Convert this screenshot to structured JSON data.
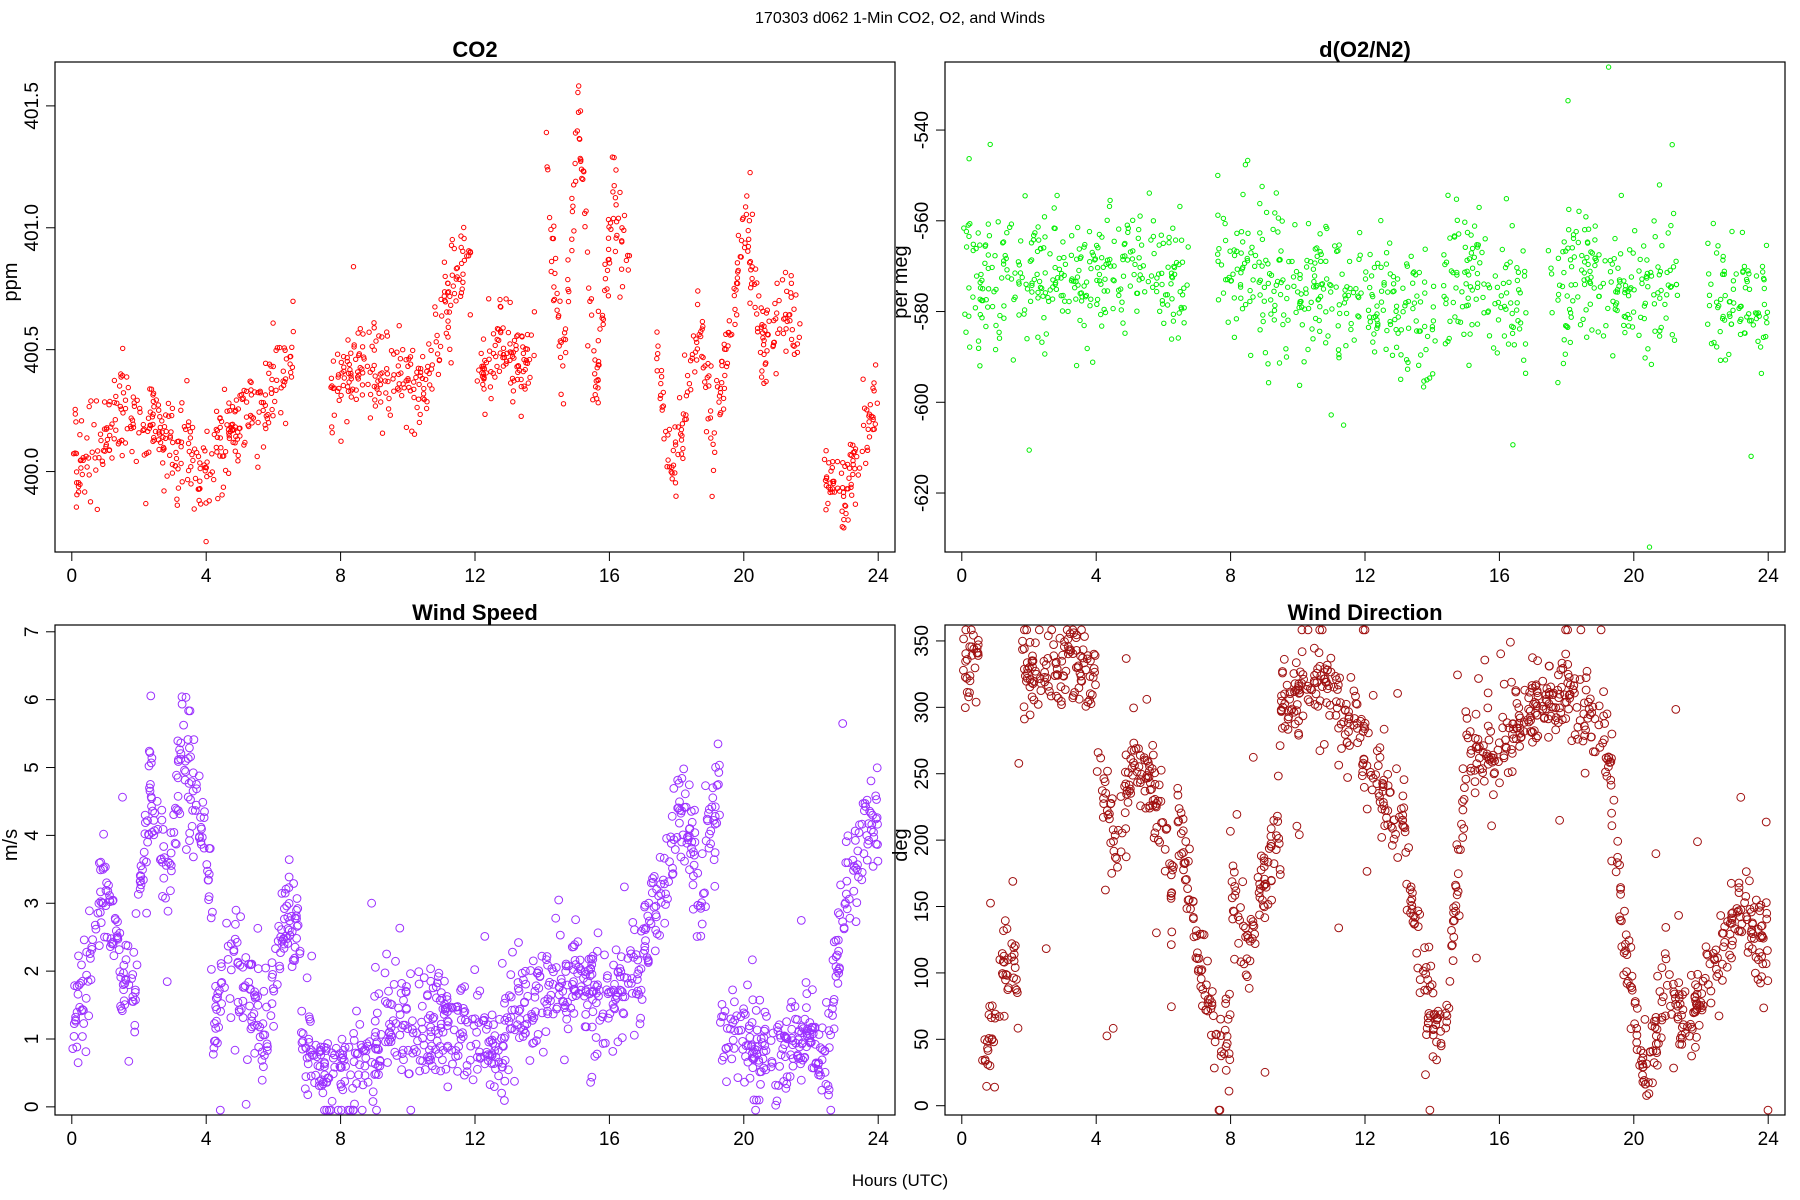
{
  "page": {
    "title": "170303   d062   1-Min CO2, O2, and Winds",
    "xlabel": "Hours (UTC)"
  },
  "chart_data": [
    {
      "id": "co2",
      "type": "scatter",
      "title": "CO2",
      "ylabel": "ppm",
      "color": "#ff0000",
      "xlim": [
        -0.5,
        24.5
      ],
      "ylim": [
        399.67,
        401.68
      ],
      "xticks": [
        0,
        4,
        8,
        12,
        16,
        20,
        24
      ],
      "yticks": [
        400.0,
        400.5,
        401.0,
        401.5
      ],
      "ytick_labels": [
        "400.0",
        "400.5",
        "401.0",
        "401.5"
      ],
      "segments": [
        {
          "x0": 0.05,
          "x1": 1.6,
          "v": [
            399.97,
            400.08,
            400.17,
            400.26
          ]
        },
        {
          "x0": 1.6,
          "x1": 3.1,
          "v": [
            400.25,
            400.16,
            400.18,
            400.14,
            400.08
          ]
        },
        {
          "x0": 3.1,
          "x1": 4.0,
          "v": [
            399.98,
            400.17,
            399.99,
            399.96
          ]
        },
        {
          "x0": 4.0,
          "x1": 6.6,
          "v": [
            400.02,
            400.12,
            400.2,
            400.27,
            400.38,
            400.5
          ]
        },
        {
          "x0": 7.7,
          "x1": 10.3,
          "v": [
            400.38,
            400.4,
            400.42,
            400.38,
            400.34
          ]
        },
        {
          "x0": 10.3,
          "x1": 11.9,
          "v": [
            400.28,
            400.48,
            400.8,
            400.92
          ]
        },
        {
          "x0": 11.9,
          "x1": 13.8,
          "v": [
            400.45,
            400.38,
            400.55,
            400.43,
            400.44
          ]
        },
        {
          "x0": 14.1,
          "x1": 16.6,
          "v": [
            401.3,
            400.4,
            401.5,
            400.3,
            401.1,
            400.85
          ]
        },
        {
          "x0": 17.4,
          "x1": 19.5,
          "v": [
            400.55,
            400.0,
            400.2,
            400.7,
            400.1,
            400.5
          ]
        },
        {
          "x0": 19.5,
          "x1": 21.7,
          "v": [
            400.5,
            401.0,
            400.5,
            400.7,
            400.5
          ]
        },
        {
          "x0": 22.4,
          "x1": 24.0,
          "v": [
            399.98,
            399.88,
            400.12,
            400.3
          ]
        }
      ],
      "noise": 0.09,
      "spikes": 0.14,
      "n": 1140,
      "point_radius": 2.2
    },
    {
      "id": "o2",
      "type": "scatter",
      "title": "d(O2/N2)",
      "ylabel": "per meg",
      "color": "#00ee00",
      "xlim": [
        -0.5,
        24.5
      ],
      "ylim": [
        -633,
        -525
      ],
      "xticks": [
        0,
        4,
        8,
        12,
        16,
        20,
        24
      ],
      "yticks": [
        -620,
        -600,
        -580,
        -560,
        -540
      ],
      "ytick_labels": [
        "-620",
        "-600",
        "-580",
        "-560",
        "-540"
      ],
      "segments": [
        {
          "x0": 0.05,
          "x1": 1.8,
          "v": [
            -574,
            -572,
            -570
          ]
        },
        {
          "x0": 1.8,
          "x1": 6.8,
          "v": [
            -571,
            -573,
            -570,
            -572
          ]
        },
        {
          "x0": 7.6,
          "x1": 12.0,
          "v": [
            -568,
            -572,
            -576,
            -575
          ]
        },
        {
          "x0": 12.0,
          "x1": 14.1,
          "v": [
            -578,
            -581,
            -583
          ]
        },
        {
          "x0": 14.3,
          "x1": 16.8,
          "v": [
            -578,
            -570,
            -575,
            -582
          ]
        },
        {
          "x0": 17.4,
          "x1": 21.3,
          "v": [
            -578,
            -572,
            -578,
            -574
          ]
        },
        {
          "x0": 22.2,
          "x1": 24.0,
          "v": [
            -579,
            -578,
            -578
          ]
        }
      ],
      "noise": 7.5,
      "spikes": 18,
      "n": 1020,
      "point_radius": 2.2
    },
    {
      "id": "wind-speed",
      "type": "scatter",
      "title": "Wind Speed",
      "ylabel": "m/s",
      "color": "#9b30ff",
      "xlim": [
        -0.5,
        24.5
      ],
      "ylim": [
        -0.12,
        7.1
      ],
      "xticks": [
        0,
        4,
        8,
        12,
        16,
        20,
        24
      ],
      "yticks": [
        0,
        1,
        2,
        3,
        4,
        5,
        6,
        7
      ],
      "ytick_labels": [
        "0",
        "1",
        "2",
        "3",
        "4",
        "5",
        "6",
        "7"
      ],
      "segments": [
        {
          "x0": 0.0,
          "x1": 1.9,
          "v": [
            1.2,
            2.0,
            3.4,
            2.1,
            1.5
          ]
        },
        {
          "x0": 1.9,
          "x1": 4.2,
          "v": [
            2.5,
            4.9,
            3.0,
            5.4,
            4.5,
            3.2
          ]
        },
        {
          "x0": 4.2,
          "x1": 6.8,
          "v": [
            1.1,
            2.4,
            1.6,
            1.2,
            2.8,
            2.5
          ]
        },
        {
          "x0": 6.8,
          "x1": 9.2,
          "v": [
            1.0,
            0.5,
            0.5,
            0.6,
            0.9
          ]
        },
        {
          "x0": 9.2,
          "x1": 13.0,
          "v": [
            1.5,
            1.0,
            1.3,
            1.0,
            0.8
          ]
        },
        {
          "x0": 13.0,
          "x1": 17.0,
          "v": [
            1.4,
            1.6,
            1.9,
            1.7,
            1.9
          ]
        },
        {
          "x0": 17.0,
          "x1": 19.3,
          "v": [
            2.4,
            3.2,
            4.5,
            3.0,
            5.0
          ]
        },
        {
          "x0": 19.3,
          "x1": 22.6,
          "v": [
            1.0,
            0.9,
            0.7,
            1.1,
            0.5
          ]
        },
        {
          "x0": 22.6,
          "x1": 24.0,
          "v": [
            1.5,
            3.1,
            3.9,
            4.3
          ]
        }
      ],
      "noise": 0.38,
      "spikes": 0.8,
      "n": 1440,
      "point_radius": 3.9
    },
    {
      "id": "wind-direction",
      "type": "scatter",
      "title": "Wind Direction",
      "ylabel": "deg",
      "color": "#a01010",
      "xlim": [
        -0.5,
        24.5
      ],
      "ylim": [
        -7,
        362
      ],
      "xticks": [
        0,
        4,
        8,
        12,
        16,
        20,
        24
      ],
      "yticks": [
        0,
        50,
        100,
        150,
        200,
        250,
        300,
        350
      ],
      "ytick_labels": [
        "0",
        "50",
        "100",
        "150",
        "200",
        "250",
        "300",
        "350"
      ],
      "segments": [
        {
          "x0": 0.0,
          "x1": 0.5,
          "v": [
            330,
            330
          ]
        },
        {
          "x0": 0.6,
          "x1": 1.0,
          "v": [
            40,
            45
          ]
        },
        {
          "x0": 1.1,
          "x1": 1.7,
          "v": [
            110,
            100
          ]
        },
        {
          "x0": 1.8,
          "x1": 4.0,
          "v": [
            330,
            325,
            330,
            325
          ]
        },
        {
          "x0": 4.0,
          "x1": 6.3,
          "v": [
            260,
            190,
            260,
            240,
            155
          ]
        },
        {
          "x0": 6.4,
          "x1": 8.0,
          "v": [
            230,
            130,
            60,
            40
          ]
        },
        {
          "x0": 8.0,
          "x1": 9.5,
          "v": [
            160,
            120,
            165,
            200
          ]
        },
        {
          "x0": 9.5,
          "x1": 13.0,
          "v": [
            300,
            320,
            280,
            200
          ]
        },
        {
          "x0": 13.0,
          "x1": 15.0,
          "v": [
            230,
            100,
            40,
            250
          ]
        },
        {
          "x0": 15.0,
          "x1": 19.0,
          "v": [
            260,
            270,
            300,
            310,
            280
          ]
        },
        {
          "x0": 19.0,
          "x1": 21.0,
          "v": [
            320,
            140,
            10,
            100
          ]
        },
        {
          "x0": 21.0,
          "x1": 24.0,
          "v": [
            80,
            60,
            120,
            150,
            110
          ]
        }
      ],
      "noise": 16,
      "spikes": 95,
      "n": 1300,
      "point_radius": 3.9
    }
  ]
}
